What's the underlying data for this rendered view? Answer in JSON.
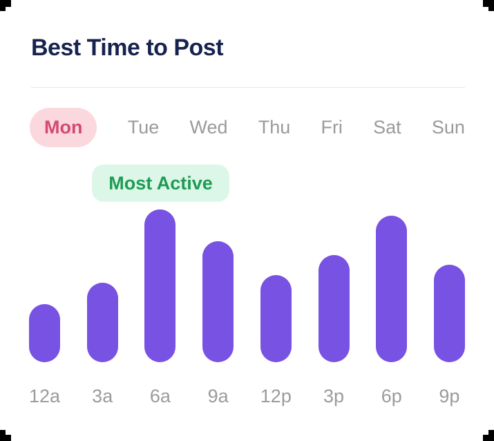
{
  "card": {
    "title": "Best Time to Post"
  },
  "day_tabs": {
    "items": [
      {
        "label": "Mon",
        "active": true
      },
      {
        "label": "Tue",
        "active": false
      },
      {
        "label": "Wed",
        "active": false
      },
      {
        "label": "Thu",
        "active": false
      },
      {
        "label": "Fri",
        "active": false
      },
      {
        "label": "Sat",
        "active": false
      },
      {
        "label": "Sun",
        "active": false
      }
    ]
  },
  "badge": {
    "label": "Most Active"
  },
  "chart_data": {
    "type": "bar",
    "title": "Best Time to Post",
    "selected_day": "Mon",
    "categories": [
      "12a",
      "3a",
      "6a",
      "9a",
      "12p",
      "3p",
      "6p",
      "9p"
    ],
    "values": [
      38,
      52,
      100,
      79,
      57,
      70,
      96,
      64
    ],
    "ylim": [
      0,
      100
    ],
    "grid": false,
    "legend": false,
    "annotations": [
      {
        "text": "Most Active",
        "category": "6a"
      }
    ],
    "bar_color": "#7852e2"
  },
  "colors": {
    "title_text": "#16234e",
    "bar": "#7852e2",
    "active_tab_bg": "#fbd8de",
    "active_tab_text": "#d34a70",
    "inactive_tab_text": "#9a9a9a",
    "badge_bg": "#dcf7e7",
    "badge_text": "#1f9b55",
    "tick_label": "#9b9b9b",
    "divider": "#e6e6e6"
  }
}
